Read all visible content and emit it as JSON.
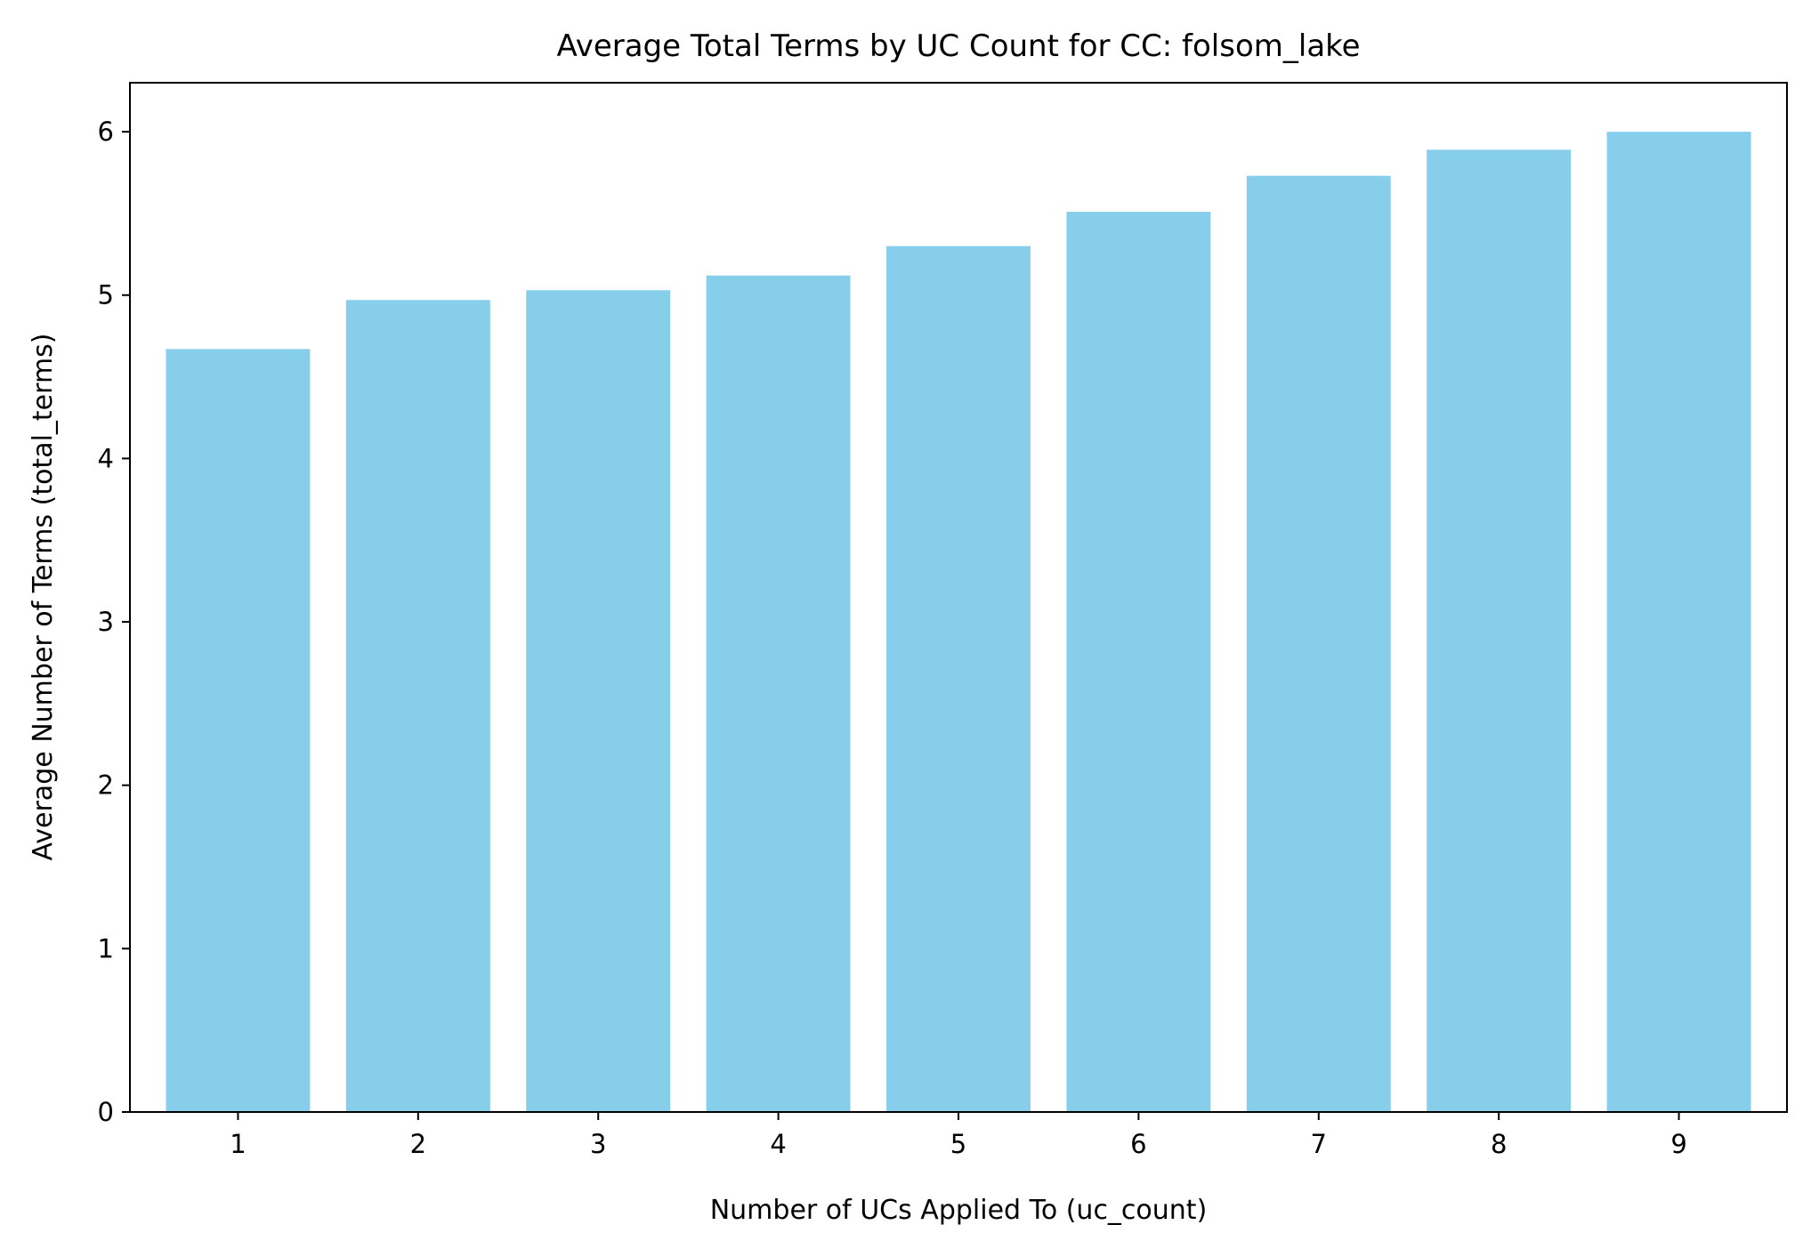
{
  "chart_data": {
    "type": "bar",
    "title": "Average Total Terms by UC Count for CC: folsom_lake",
    "xlabel": "Number of UCs Applied To (uc_count)",
    "ylabel": "Average Number of Terms (total_terms)",
    "categories": [
      "1",
      "2",
      "3",
      "4",
      "5",
      "6",
      "7",
      "8",
      "9"
    ],
    "values": [
      4.67,
      4.97,
      5.03,
      5.12,
      5.3,
      5.51,
      5.73,
      5.89,
      6.0
    ],
    "ylim": [
      0,
      6.3
    ],
    "yticks": [
      "0",
      "1",
      "2",
      "3",
      "4",
      "5",
      "6"
    ],
    "bar_color": "#87CEEB",
    "grid": false,
    "legend": "none"
  }
}
